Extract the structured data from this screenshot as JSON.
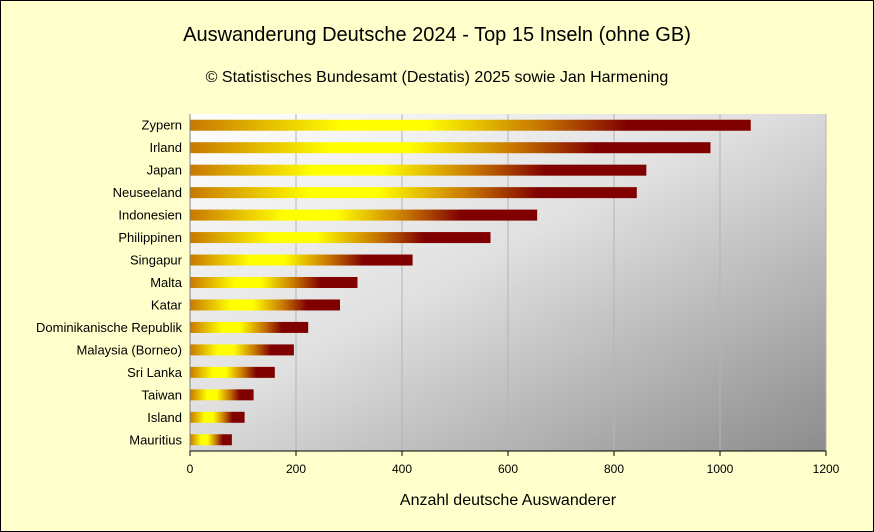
{
  "chart_data": {
    "type": "bar",
    "orientation": "horizontal",
    "title": "Auswanderung Deutsche 2024 - Top 15 Inseln (ohne GB)",
    "subtitle": "© Statistisches Bundesamt (Destatis) 2025 sowie Jan Harmening",
    "xlabel": "Anzahl deutsche Auswanderer",
    "ylabel": "",
    "xlim": [
      0,
      1200
    ],
    "xticks": [
      0,
      200,
      400,
      600,
      800,
      1000,
      1200
    ],
    "grid": "vertical",
    "legend": "none",
    "categories": [
      "Zypern",
      "Irland",
      "Japan",
      "Neuseeland",
      "Indonesien",
      "Philippinen",
      "Singapur",
      "Malta",
      "Katar",
      "Dominikanische Republik",
      "Malaysia (Borneo)",
      "Sri Lanka",
      "Taiwan",
      "Island",
      "Mauritius"
    ],
    "values": [
      1058,
      982,
      861,
      843,
      655,
      567,
      420,
      316,
      283,
      223,
      196,
      160,
      120,
      103,
      79
    ],
    "colors": {
      "background": "#ffffcc",
      "bar_light": "#ffff00",
      "bar_mid": "#c87800",
      "bar_dark": "#800000",
      "plot_light": "#ffffff",
      "plot_dark": "#8c8c8c",
      "grid": "#b4b4b4"
    }
  }
}
